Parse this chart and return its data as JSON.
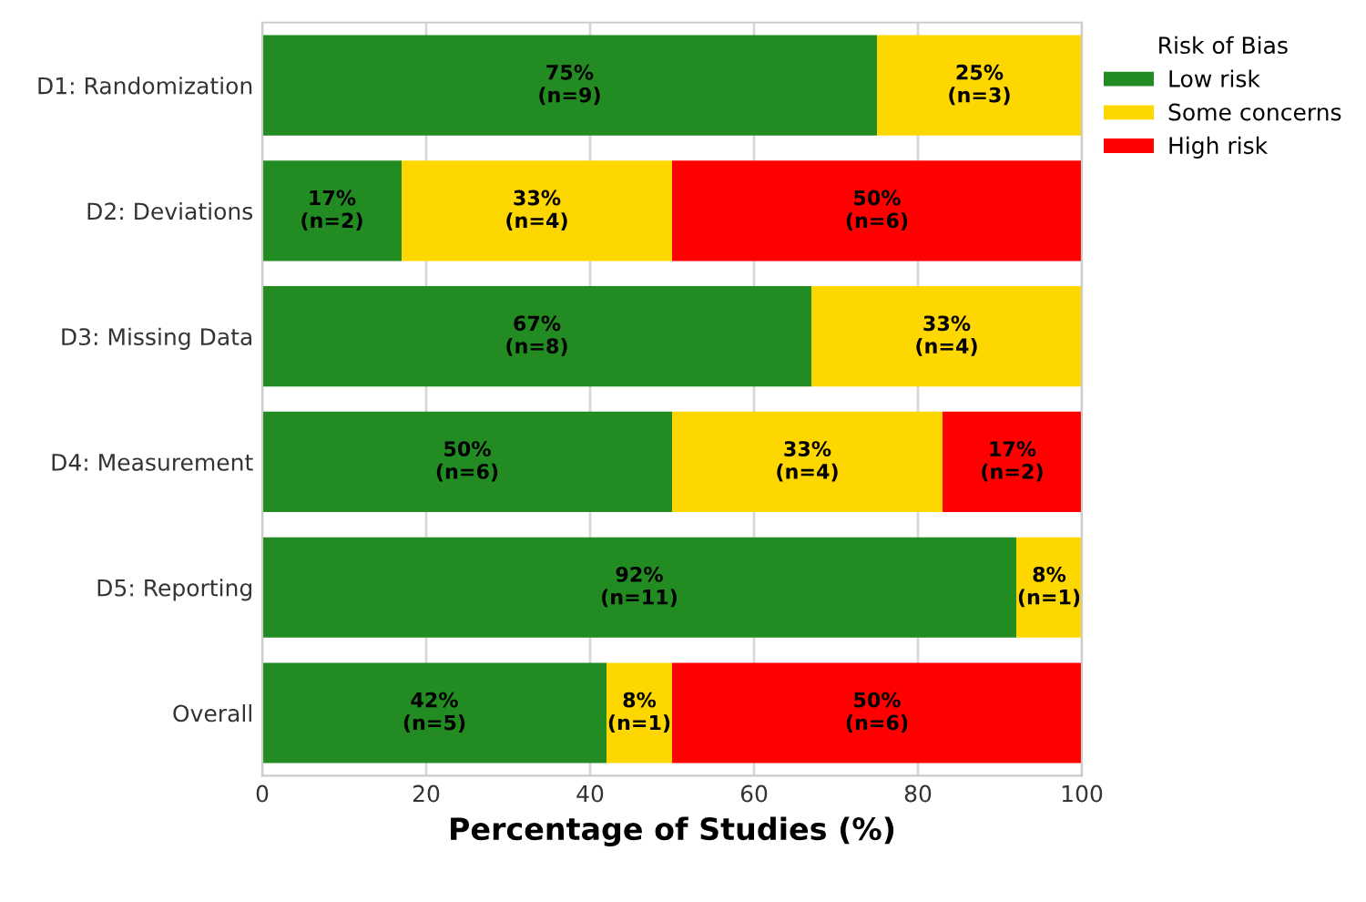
{
  "chart_data": {
    "type": "bar",
    "orientation": "horizontal",
    "stacked": true,
    "xlabel": "Percentage of Studies (%)",
    "legend_title": "Risk of Bias",
    "legend": "top right",
    "grid": true,
    "xlim": [
      0,
      100
    ],
    "xticks": [
      0,
      20,
      40,
      60,
      80,
      100
    ],
    "categories": [
      "D1: Randomization",
      "D2: Deviations",
      "D3: Missing Data",
      "D4: Measurement",
      "D5: Reporting",
      "Overall"
    ],
    "series": [
      {
        "name": "Low risk",
        "color": "#228b22",
        "values": [
          75,
          17,
          67,
          50,
          92,
          42
        ],
        "value_labels": [
          "75%\n(n=9)",
          "17%\n(n=2)",
          "67%\n(n=8)",
          "50%\n(n=6)",
          "92%\n(n=11)",
          "42%\n(n=5)"
        ]
      },
      {
        "name": "Some concerns",
        "color": "#ffd700",
        "values": [
          25,
          33,
          33,
          33,
          8,
          8
        ],
        "value_labels": [
          "25%\n(n=3)",
          "33%\n(n=4)",
          "33%\n(n=4)",
          "33%\n(n=4)",
          "8%\n(n=1)",
          "8%\n(n=1)"
        ]
      },
      {
        "name": "High risk",
        "color": "#ff0000",
        "values": [
          null,
          50,
          null,
          17,
          null,
          50
        ],
        "value_labels": [
          null,
          "50%\n(n=6)",
          null,
          "17%\n(n=2)",
          null,
          "50%\n(n=6)"
        ]
      }
    ]
  }
}
